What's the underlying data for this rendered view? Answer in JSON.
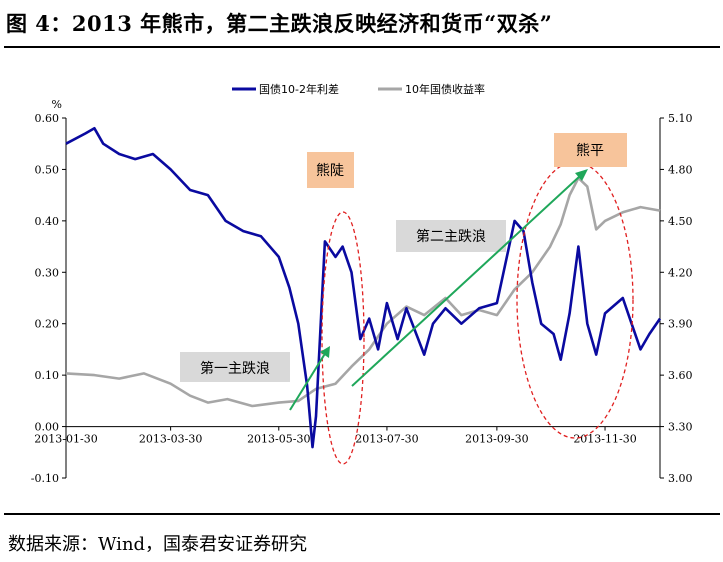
{
  "header": {
    "title": "图 4：2013 年熊市，第二主跌浪反映经济和货币“双杀”"
  },
  "footer": {
    "source": "数据来源：Wind，国泰君安证券研究"
  },
  "colors": {
    "spread_series": "#0A0AA0",
    "yield_series": "#A6A6A6",
    "arrow": "#1FA75A",
    "ellipse": "#E02020",
    "bear_box": "#F7C49B",
    "wave_box": "#D9D9D9"
  },
  "chart_data": {
    "type": "line",
    "title": "",
    "left_axis": {
      "unit": "%",
      "ylim": [
        -0.1,
        0.6
      ],
      "ticks": [
        "0.60",
        "0.50",
        "0.40",
        "0.30",
        "0.20",
        "0.10",
        "0.00",
        "-0.10"
      ]
    },
    "right_axis": {
      "ylim": [
        3.0,
        5.1
      ],
      "ticks": [
        "5.10",
        "4.80",
        "4.50",
        "4.20",
        "3.90",
        "3.60",
        "3.30",
        "3.00"
      ]
    },
    "x_ticks": [
      "2013-01-30",
      "2013-03-30",
      "2013-05-30",
      "2013-07-30",
      "2013-09-30",
      "2013-11-30"
    ],
    "legend": {
      "placement": "top",
      "entries": [
        "国债10-2年利差",
        "10年国债收益率"
      ]
    },
    "series": [
      {
        "name": "国债10-2年利差",
        "axis": "left",
        "x": [
          "2013-01-30",
          "2013-02-10",
          "2013-02-15",
          "2013-02-20",
          "2013-03-01",
          "2013-03-10",
          "2013-03-20",
          "2013-03-30",
          "2013-04-10",
          "2013-04-20",
          "2013-04-30",
          "2013-05-10",
          "2013-05-20",
          "2013-05-30",
          "2013-06-05",
          "2013-06-10",
          "2013-06-15",
          "2013-06-18",
          "2013-06-20",
          "2013-06-25",
          "2013-07-01",
          "2013-07-05",
          "2013-07-10",
          "2013-07-15",
          "2013-07-20",
          "2013-07-25",
          "2013-07-30",
          "2013-08-05",
          "2013-08-10",
          "2013-08-20",
          "2013-08-25",
          "2013-09-01",
          "2013-09-10",
          "2013-09-20",
          "2013-09-30",
          "2013-10-10",
          "2013-10-15",
          "2013-10-20",
          "2013-10-25",
          "2013-11-01",
          "2013-11-05",
          "2013-11-10",
          "2013-11-15",
          "2013-11-20",
          "2013-11-25",
          "2013-11-30",
          "2013-12-10",
          "2013-12-15",
          "2013-12-20",
          "2013-12-25",
          "2013-12-31"
        ],
        "values": [
          0.55,
          0.57,
          0.58,
          0.55,
          0.53,
          0.52,
          0.53,
          0.5,
          0.46,
          0.45,
          0.4,
          0.38,
          0.37,
          0.33,
          0.27,
          0.2,
          0.08,
          -0.04,
          0.02,
          0.36,
          0.33,
          0.35,
          0.3,
          0.17,
          0.21,
          0.15,
          0.24,
          0.17,
          0.23,
          0.14,
          0.2,
          0.23,
          0.2,
          0.23,
          0.24,
          0.4,
          0.38,
          0.28,
          0.2,
          0.18,
          0.13,
          0.22,
          0.35,
          0.2,
          0.14,
          0.22,
          0.25,
          0.2,
          0.15,
          0.18,
          0.21
        ]
      },
      {
        "name": "10年国债收益率",
        "axis": "right",
        "x": [
          "2013-01-30",
          "2013-02-15",
          "2013-03-01",
          "2013-03-15",
          "2013-03-30",
          "2013-04-10",
          "2013-04-20",
          "2013-05-01",
          "2013-05-15",
          "2013-05-30",
          "2013-06-10",
          "2013-06-20",
          "2013-07-01",
          "2013-07-10",
          "2013-07-20",
          "2013-07-30",
          "2013-08-10",
          "2013-08-20",
          "2013-09-01",
          "2013-09-10",
          "2013-09-20",
          "2013-09-30",
          "2013-10-10",
          "2013-10-20",
          "2013-10-30",
          "2013-11-05",
          "2013-11-10",
          "2013-11-15",
          "2013-11-20",
          "2013-11-25",
          "2013-11-30",
          "2013-12-10",
          "2013-12-20",
          "2013-12-31"
        ],
        "values": [
          3.61,
          3.6,
          3.58,
          3.61,
          3.55,
          3.48,
          3.44,
          3.46,
          3.42,
          3.44,
          3.45,
          3.52,
          3.55,
          3.65,
          3.75,
          3.9,
          4.0,
          3.95,
          4.05,
          3.95,
          3.98,
          3.95,
          4.1,
          4.2,
          4.35,
          4.48,
          4.65,
          4.75,
          4.7,
          4.45,
          4.5,
          4.55,
          4.58,
          4.56
        ]
      }
    ],
    "annotations": [
      "熊陡",
      "第一主跌浪",
      "第二主跌浪",
      "熊平"
    ]
  }
}
